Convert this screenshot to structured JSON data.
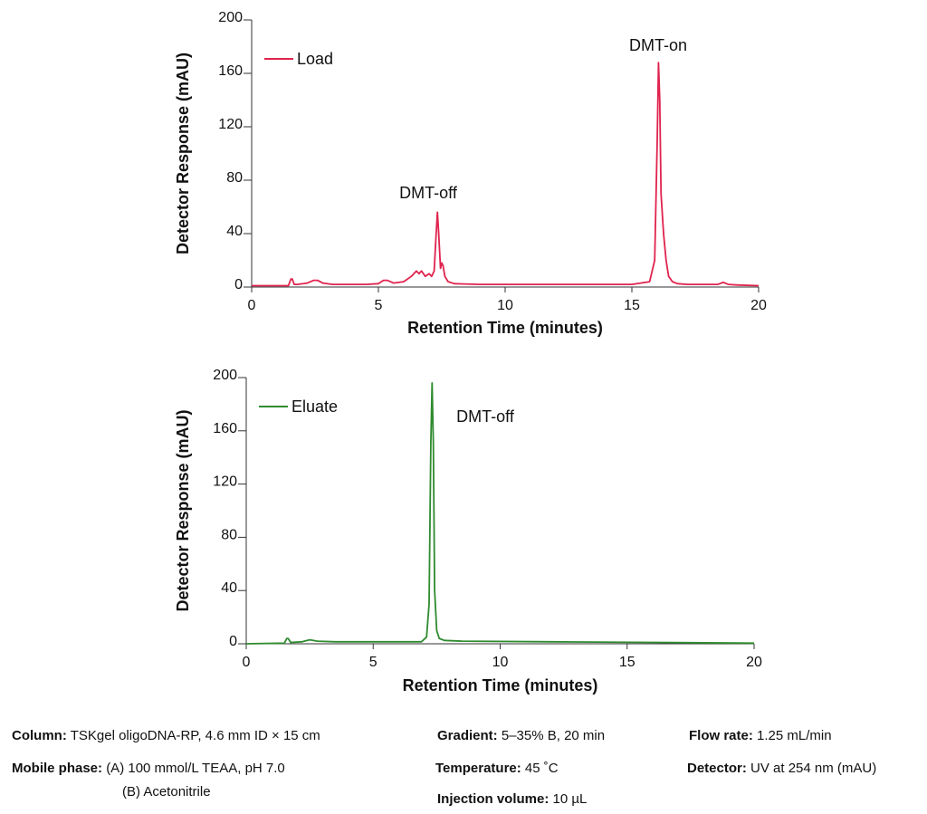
{
  "chart_data": [
    {
      "type": "line",
      "xlabel": "Retention Time (minutes)",
      "ylabel": "Detector Response (mAU)",
      "xlim": [
        0,
        20
      ],
      "ylim": [
        0,
        200
      ],
      "xticks": [
        0,
        5,
        10,
        15,
        20
      ],
      "yticks": [
        0,
        40,
        80,
        120,
        160,
        200
      ],
      "grid": false,
      "legend_position": "top-left",
      "series": [
        {
          "name": "Load",
          "color": "#e0234e",
          "x": [
            0,
            1.45,
            1.55,
            1.6,
            1.68,
            1.8,
            2.2,
            2.45,
            2.6,
            2.8,
            3.2,
            4.5,
            5.0,
            5.2,
            5.35,
            5.6,
            6.0,
            6.3,
            6.5,
            6.6,
            6.7,
            6.85,
            7.0,
            7.1,
            7.2,
            7.28,
            7.33,
            7.38,
            7.45,
            7.5,
            7.55,
            7.62,
            7.75,
            8.0,
            9,
            12,
            15.0,
            15.7,
            15.9,
            16.0,
            16.05,
            16.1,
            16.15,
            16.25,
            16.35,
            16.45,
            16.6,
            16.8,
            17.2,
            18.4,
            18.6,
            18.8,
            19.2,
            20
          ],
          "values": [
            1,
            1,
            6,
            6,
            2,
            2,
            3,
            5,
            5,
            3,
            2,
            2,
            2.5,
            5,
            5,
            3,
            4,
            8,
            12,
            10,
            12,
            8,
            10,
            8,
            12,
            40,
            56,
            40,
            14,
            18,
            16,
            8,
            4,
            2.5,
            2,
            2,
            2,
            4,
            20,
            110,
            168,
            140,
            70,
            40,
            20,
            8,
            4,
            2.5,
            2,
            2,
            3.5,
            2,
            1.5,
            1
          ]
        }
      ],
      "annotations": [
        "DMT-off",
        "DMT-on"
      ]
    },
    {
      "type": "line",
      "xlabel": "Retention Time (minutes)",
      "ylabel": "Detector Response (mAU)",
      "xlim": [
        0,
        20
      ],
      "ylim": [
        0,
        200
      ],
      "xticks": [
        0,
        5,
        10,
        15,
        20
      ],
      "yticks": [
        0,
        40,
        80,
        120,
        160,
        200
      ],
      "grid": false,
      "legend_position": "top-left",
      "series": [
        {
          "name": "Eluate",
          "color": "#2e8b2e",
          "x": [
            0,
            1.5,
            1.6,
            1.65,
            1.75,
            2.2,
            2.5,
            2.8,
            3.5,
            6.9,
            7.1,
            7.2,
            7.27,
            7.32,
            7.37,
            7.42,
            7.5,
            7.6,
            7.8,
            8.5,
            12,
            16,
            20
          ],
          "values": [
            0,
            0.5,
            4,
            4,
            1,
            1.5,
            3,
            2,
            1.5,
            1.5,
            5,
            30,
            150,
            196,
            150,
            40,
            10,
            4,
            2.5,
            2,
            1.5,
            1,
            0.5
          ]
        }
      ],
      "annotations": [
        "DMT-off"
      ]
    }
  ],
  "conditions": {
    "column": {
      "label": "Column:",
      "value": "TSKgel oligoDNA-RP, 4.6 mm ID × 15 cm"
    },
    "mobile_phase": {
      "label": "Mobile phase:",
      "value_a": "(A) 100 mmol/L TEAA, pH 7.0",
      "value_b": "(B) Acetonitrile"
    },
    "gradient": {
      "label": "Gradient:",
      "value": "5–35% B, 20 min"
    },
    "temperature": {
      "label": "Temperature:",
      "value": "45 ˚C"
    },
    "injection_volume": {
      "label": "Injection volume:",
      "value": "10 µL"
    },
    "flow_rate": {
      "label": "Flow rate:",
      "value": "1.25 mL/min"
    },
    "detector": {
      "label": "Detector:",
      "value": "UV at 254 nm (mAU)"
    }
  }
}
